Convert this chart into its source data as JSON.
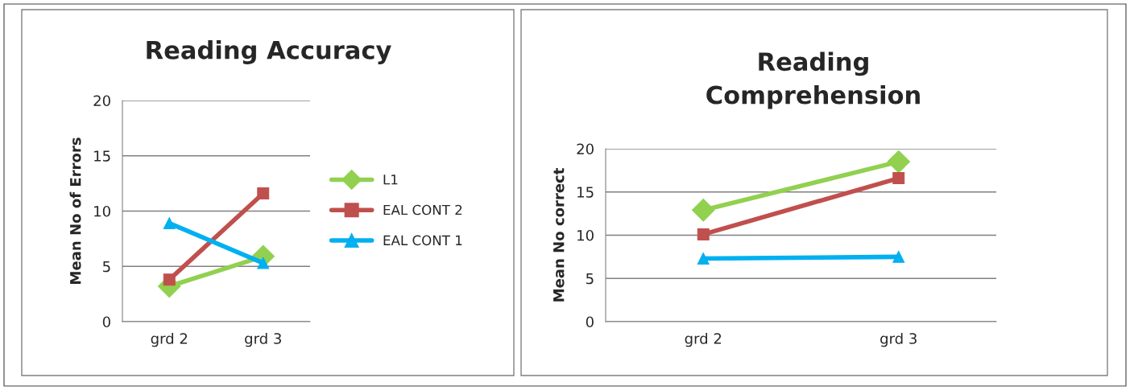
{
  "chart_data": [
    {
      "type": "line",
      "title": "Reading Accuracy",
      "ylabel": "Mean No of Errors",
      "categories": [
        "grd 2",
        "grd 3"
      ],
      "series": [
        {
          "name": "L1",
          "color": "#92d050",
          "marker": "diamond",
          "values": [
            3.2,
            5.9
          ]
        },
        {
          "name": "EAL CONT 2",
          "color": "#c0504d",
          "marker": "square",
          "values": [
            3.8,
            11.6
          ]
        },
        {
          "name": "EAL CONT 1",
          "color": "#00b0f0",
          "marker": "triangle",
          "values": [
            8.9,
            5.3
          ]
        }
      ],
      "ylim": [
        0,
        20
      ],
      "yticks": [
        0,
        5,
        10,
        15,
        20
      ],
      "grid": "y",
      "legend": "right"
    },
    {
      "type": "line",
      "title": "Reading\nComprehension",
      "ylabel": "Mean No correct",
      "categories": [
        "grd 2",
        "grd 3"
      ],
      "series": [
        {
          "color": "#92d050",
          "marker": "diamond",
          "values": [
            12.9,
            18.5
          ]
        },
        {
          "color": "#c0504d",
          "marker": "square",
          "values": [
            10.1,
            16.6
          ]
        },
        {
          "color": "#00b0f0",
          "marker": "triangle",
          "values": [
            7.3,
            7.5
          ]
        }
      ],
      "ylim": [
        0,
        20
      ],
      "yticks": [
        0,
        5,
        10,
        15,
        20
      ],
      "grid": "y"
    }
  ]
}
